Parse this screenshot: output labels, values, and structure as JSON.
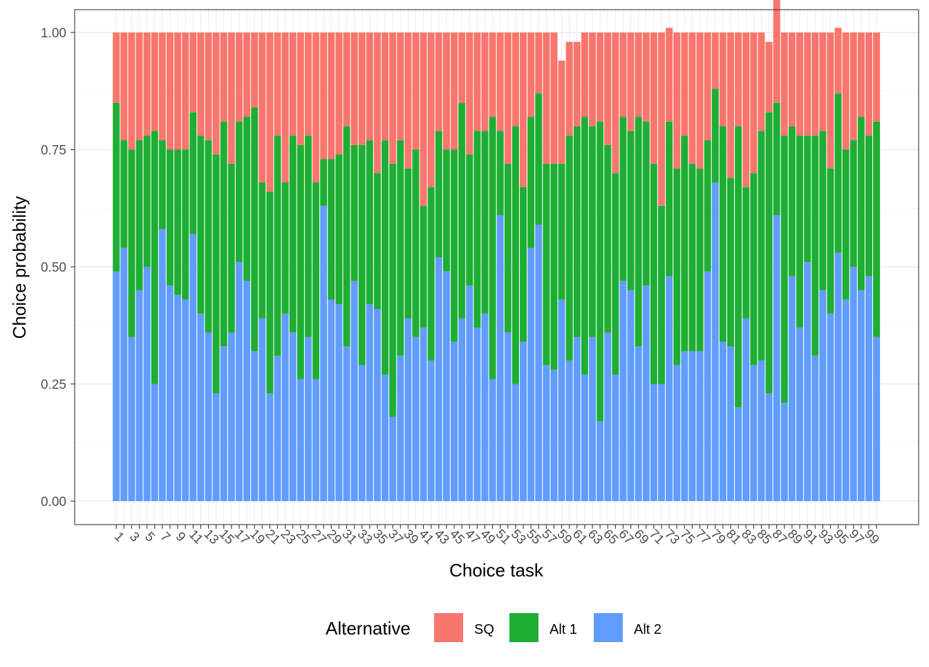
{
  "chart_data": {
    "type": "bar",
    "stacked": true,
    "xlabel": "Choice task",
    "ylabel": "Choice probability",
    "ylim": [
      0,
      1
    ],
    "y_ticks": [
      "0.00",
      "0.25",
      "0.50",
      "0.75",
      "1.00"
    ],
    "categories": [
      1,
      2,
      3,
      4,
      5,
      6,
      7,
      8,
      9,
      10,
      11,
      12,
      13,
      14,
      15,
      16,
      17,
      18,
      19,
      20,
      21,
      22,
      23,
      24,
      25,
      26,
      27,
      28,
      29,
      30,
      31,
      32,
      33,
      34,
      35,
      36,
      37,
      38,
      39,
      40,
      41,
      42,
      43,
      44,
      45,
      46,
      47,
      48,
      49,
      50,
      51,
      52,
      53,
      54,
      55,
      56,
      57,
      58,
      59,
      60,
      61,
      62,
      63,
      64,
      65,
      66,
      67,
      68,
      69,
      70,
      71,
      72,
      73,
      74,
      75,
      76,
      77,
      78,
      79,
      80,
      81,
      82,
      83,
      84,
      85,
      86,
      87,
      88,
      89,
      90,
      91,
      92,
      93,
      94,
      95,
      96,
      97,
      98,
      99,
      100
    ],
    "x_tick_labels": [
      "1",
      "3",
      "5",
      "7",
      "9",
      "11",
      "13",
      "15",
      "17",
      "19",
      "21",
      "23",
      "25",
      "27",
      "29",
      "31",
      "33",
      "35",
      "37",
      "39",
      "41",
      "43",
      "45",
      "47",
      "49",
      "51",
      "53",
      "55",
      "57",
      "59",
      "61",
      "63",
      "65",
      "67",
      "69",
      "71",
      "73",
      "75",
      "77",
      "79",
      "81",
      "83",
      "85",
      "87",
      "89",
      "91",
      "93",
      "95",
      "97",
      "99"
    ],
    "legend_title": "Alternative",
    "legend_position": "bottom",
    "grid": true,
    "series": [
      {
        "name": "Alt 2",
        "color": "#619CFF",
        "values": [
          0.49,
          0.54,
          0.35,
          0.45,
          0.5,
          0.25,
          0.58,
          0.46,
          0.44,
          0.43,
          0.57,
          0.4,
          0.36,
          0.23,
          0.33,
          0.36,
          0.51,
          0.47,
          0.32,
          0.39,
          0.23,
          0.31,
          0.4,
          0.36,
          0.26,
          0.35,
          0.26,
          0.63,
          0.43,
          0.42,
          0.33,
          0.47,
          0.29,
          0.42,
          0.41,
          0.27,
          0.18,
          0.31,
          0.39,
          0.35,
          0.37,
          0.3,
          0.52,
          0.49,
          0.34,
          0.39,
          0.46,
          0.37,
          0.4,
          0.26,
          0.61,
          0.36,
          0.25,
          0.34,
          0.54,
          0.59,
          0.29,
          0.28,
          0.43,
          0.3,
          0.35,
          0.27,
          0.35,
          0.17,
          0.36,
          0.27,
          0.47,
          0.45,
          0.33,
          0.46,
          0.25,
          0.25,
          0.48,
          0.29,
          0.32,
          0.32,
          0.32,
          0.49,
          0.68,
          0.34,
          0.33,
          0.2,
          0.39,
          0.29,
          0.3,
          0.23,
          0.61,
          0.21,
          0.48,
          0.37,
          0.51,
          0.31,
          0.45,
          0.4,
          0.53,
          0.43,
          0.5,
          0.45,
          0.48,
          0.35
        ]
      },
      {
        "name": "Alt 1",
        "color": "#1EAE34",
        "values": [
          0.36,
          0.23,
          0.4,
          0.32,
          0.28,
          0.54,
          0.19,
          0.29,
          0.31,
          0.32,
          0.26,
          0.38,
          0.41,
          0.51,
          0.48,
          0.36,
          0.3,
          0.35,
          0.52,
          0.29,
          0.43,
          0.47,
          0.28,
          0.42,
          0.5,
          0.43,
          0.42,
          0.1,
          0.3,
          0.32,
          0.47,
          0.29,
          0.47,
          0.35,
          0.29,
          0.5,
          0.54,
          0.46,
          0.32,
          0.4,
          0.26,
          0.37,
          0.27,
          0.26,
          0.41,
          0.46,
          0.28,
          0.42,
          0.39,
          0.56,
          0.18,
          0.36,
          0.55,
          0.33,
          0.28,
          0.28,
          0.43,
          0.44,
          0.29,
          0.48,
          0.45,
          0.55,
          0.45,
          0.64,
          0.4,
          0.43,
          0.35,
          0.34,
          0.49,
          0.35,
          0.47,
          0.38,
          0.33,
          0.42,
          0.46,
          0.4,
          0.39,
          0.28,
          0.2,
          0.46,
          0.36,
          0.6,
          0.28,
          0.41,
          0.49,
          0.6,
          0.24,
          0.57,
          0.32,
          0.41,
          0.27,
          0.47,
          0.34,
          0.31,
          0.34,
          0.32,
          0.27,
          0.37,
          0.3,
          0.46
        ]
      },
      {
        "name": "SQ",
        "color": "#F8766D",
        "values": [
          0.15,
          0.23,
          0.25,
          0.23,
          0.22,
          0.21,
          0.23,
          0.25,
          0.25,
          0.25,
          0.17,
          0.22,
          0.23,
          0.26,
          0.19,
          0.28,
          0.19,
          0.18,
          0.16,
          0.32,
          0.34,
          0.22,
          0.32,
          0.22,
          0.24,
          0.22,
          0.32,
          0.27,
          0.27,
          0.26,
          0.2,
          0.24,
          0.24,
          0.23,
          0.3,
          0.23,
          0.28,
          0.23,
          0.29,
          0.25,
          0.37,
          0.33,
          0.21,
          0.25,
          0.25,
          0.15,
          0.26,
          0.21,
          0.21,
          0.18,
          0.21,
          0.28,
          0.2,
          0.33,
          0.18,
          0.13,
          0.28,
          0.28,
          0.22,
          0.2,
          0.18,
          0.18,
          0.2,
          0.19,
          0.24,
          0.3,
          0.18,
          0.21,
          0.18,
          0.19,
          0.28,
          0.37,
          0.2,
          0.29,
          0.22,
          0.28,
          0.29,
          0.23,
          0.12,
          0.2,
          0.31,
          0.2,
          0.33,
          0.3,
          0.21,
          0.15,
          0.22,
          0.22,
          0.2,
          0.22,
          0.22,
          0.22,
          0.21,
          0.29,
          0.14,
          0.25,
          0.23,
          0.18,
          0.22,
          0.19
        ]
      }
    ]
  }
}
